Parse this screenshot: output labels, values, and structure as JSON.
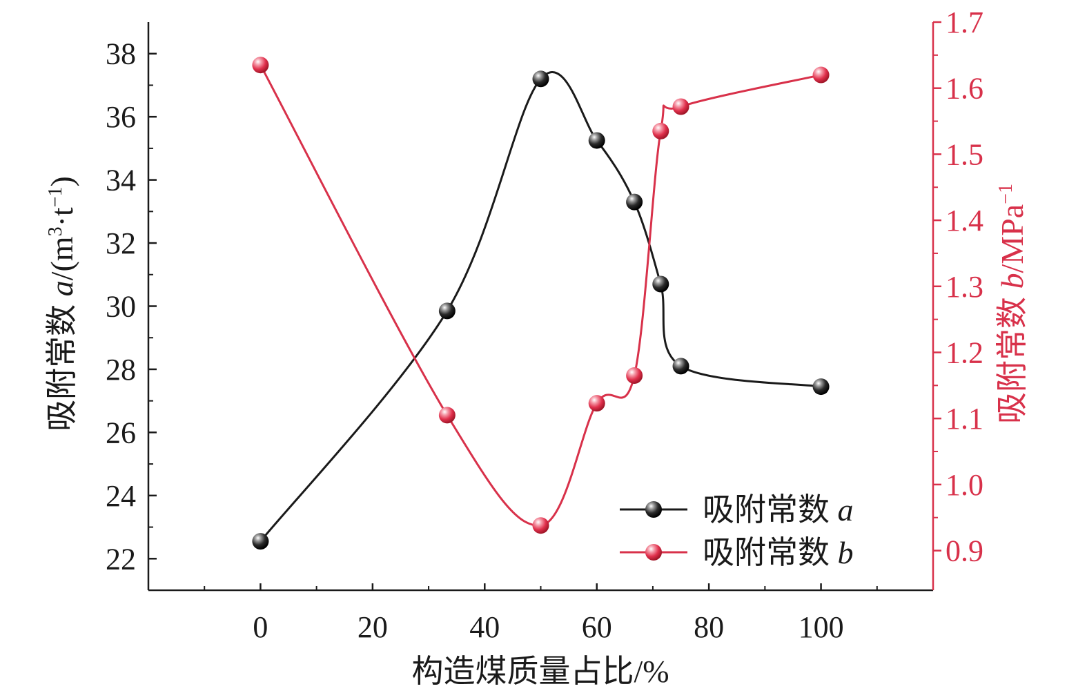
{
  "chart_data": {
    "type": "line",
    "xlabel": "构造煤质量占比/%",
    "x_ticks": [
      "0",
      "20",
      "40",
      "60",
      "80",
      "100"
    ],
    "xlim": [
      -20,
      120
    ],
    "y_left": {
      "label_prefix": "吸附常数 ",
      "label_var": "a",
      "label_unit_a": "/(m",
      "label_sup1": "3",
      "label_unit_b": "·t",
      "label_sup2": "−1",
      "label_unit_c": ")",
      "ylim": [
        21,
        39
      ],
      "ticks": [
        "22",
        "24",
        "26",
        "28",
        "30",
        "32",
        "34",
        "36",
        "38"
      ],
      "color": "#1a1a1a"
    },
    "y_right": {
      "label_prefix": "吸附常数 ",
      "label_var": "b",
      "label_unit": "/MPa",
      "label_sup": "−1",
      "ylim": [
        0.84,
        1.7
      ],
      "ticks": [
        "0.9",
        "1.0",
        "1.1",
        "1.2",
        "1.3",
        "1.4",
        "1.5",
        "1.6",
        "1.7"
      ],
      "color": "#d8314a"
    },
    "series": [
      {
        "name_text": "吸附常数 ",
        "name_var": "a",
        "axis": "left",
        "color": "#1a1a1a",
        "x": [
          0,
          33.3,
          50,
          60,
          66.7,
          71.4,
          75,
          100
        ],
        "values": [
          22.55,
          29.85,
          37.2,
          35.25,
          33.3,
          30.7,
          28.1,
          27.45
        ]
      },
      {
        "name_text": "吸附常数 ",
        "name_var": "b",
        "axis": "right",
        "color": "#d8314a",
        "x": [
          0,
          33.3,
          50,
          60,
          66.7,
          71.4,
          75,
          100
        ],
        "values": [
          1.635,
          1.105,
          0.938,
          1.123,
          1.165,
          1.535,
          1.572,
          1.62
        ]
      }
    ],
    "legend_position": "bottom-right",
    "grid": false
  }
}
